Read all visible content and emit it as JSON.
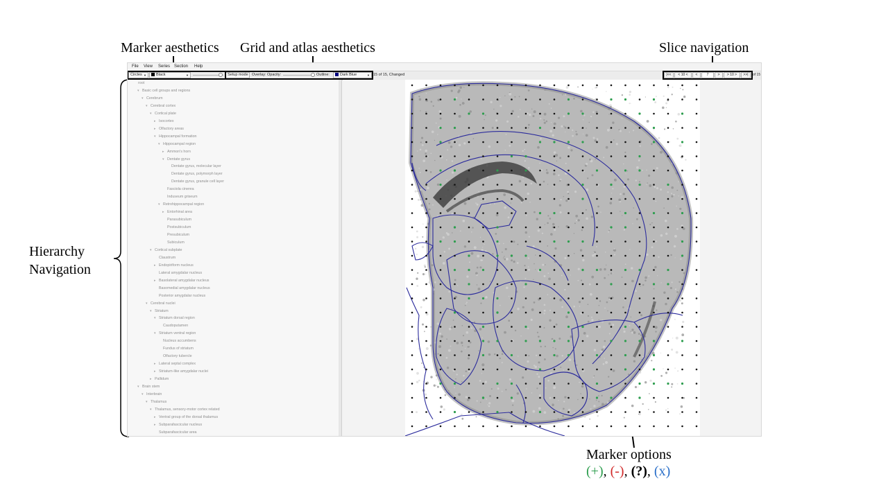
{
  "annotations": {
    "marker_aesthetics": "Marker aesthetics",
    "grid_atlas_aesthetics": "Grid and atlas aesthetics",
    "slice_navigation": "Slice navigation",
    "hierarchy_line1": "Hierarchy",
    "hierarchy_line2": "Navigation",
    "marker_options_title": "Marker options",
    "marker_options": {
      "plus": "(+)",
      "minus": "(-)",
      "question": "(?)",
      "x": "(x)",
      "sep": ", ",
      "colors": {
        "plus": "#2e9e4f",
        "minus": "#d12a2a",
        "question": "#000000",
        "x": "#2a6fc9"
      }
    }
  },
  "menu": [
    "File",
    "View",
    "Series",
    "Section",
    "Help"
  ],
  "toolbar": {
    "marker_shape": "Circles",
    "marker_color": "Black",
    "marker_color_swatch": "#000000",
    "setup_mode": "Setup mode",
    "overlay_label": "Overlay: Opacity:",
    "outline_label": "Outline:",
    "outline_color": "Dark Blue",
    "outline_swatch": "#000080",
    "series_status": "15 of 15, Changed"
  },
  "navigation": {
    "first": "|<<",
    "back10": "< 10 <",
    "back1": "<",
    "current": "7",
    "fwd1": ">",
    "fwd10": "> 10 >",
    "last": ">>|",
    "total": "of 15"
  },
  "tree": [
    {
      "label": "root",
      "arrow": ""
    },
    {
      "label": "Basic cell groups and regions",
      "arrow": "▾"
    },
    {
      "label": "Cerebrum",
      "arrow": "▾"
    },
    {
      "label": "Cerebral cortex",
      "arrow": "▾"
    },
    {
      "label": "Cortical plate",
      "arrow": "▾"
    },
    {
      "label": "Isocortex",
      "arrow": "▸"
    },
    {
      "label": "Olfactory areas",
      "arrow": "▸"
    },
    {
      "label": "Hippocampal formation",
      "arrow": "▾"
    },
    {
      "label": "Hippocampal region",
      "arrow": "▾"
    },
    {
      "label": "Ammon's horn",
      "arrow": "▸"
    },
    {
      "label": "Dentate gyrus",
      "arrow": "▾"
    },
    {
      "label": "Dentate gyrus, molecular layer",
      "arrow": ""
    },
    {
      "label": "Dentate gyrus, polymorph layer",
      "arrow": ""
    },
    {
      "label": "Dentate gyrus, granule cell layer",
      "arrow": ""
    },
    {
      "label": "Fasciola cinerea",
      "arrow": ""
    },
    {
      "label": "Induseum griseum",
      "arrow": ""
    },
    {
      "label": "Retrohippocampal region",
      "arrow": "▾"
    },
    {
      "label": "Entorhinal area",
      "arrow": "▸"
    },
    {
      "label": "Parasubiculum",
      "arrow": ""
    },
    {
      "label": "Postsubiculum",
      "arrow": ""
    },
    {
      "label": "Presubiculum",
      "arrow": ""
    },
    {
      "label": "Subiculum",
      "arrow": ""
    },
    {
      "label": "Cortical subplate",
      "arrow": "▾"
    },
    {
      "label": "Claustrum",
      "arrow": ""
    },
    {
      "label": "Endopiriform nucleus",
      "arrow": "▸"
    },
    {
      "label": "Lateral amygdalar nucleus",
      "arrow": ""
    },
    {
      "label": "Basolateral amygdalar nucleus",
      "arrow": "▸"
    },
    {
      "label": "Basomedial amygdalar nucleus",
      "arrow": ""
    },
    {
      "label": "Posterior amygdalar nucleus",
      "arrow": ""
    },
    {
      "label": "Cerebral nuclei",
      "arrow": "▾"
    },
    {
      "label": "Striatum",
      "arrow": "▾"
    },
    {
      "label": "Striatum dorsal region",
      "arrow": "▾"
    },
    {
      "label": "Caudoputamen",
      "arrow": ""
    },
    {
      "label": "Striatum ventral region",
      "arrow": "▾"
    },
    {
      "label": "Nucleus accumbens",
      "arrow": ""
    },
    {
      "label": "Fundus of striatum",
      "arrow": ""
    },
    {
      "label": "Olfactory tubercle",
      "arrow": ""
    },
    {
      "label": "Lateral septal complex",
      "arrow": "▸"
    },
    {
      "label": "Striatum-like amygdalar nuclei",
      "arrow": "▸"
    },
    {
      "label": "Pallidum",
      "arrow": "▸"
    },
    {
      "label": "Brain stem",
      "arrow": "▾"
    },
    {
      "label": "Interbrain",
      "arrow": "▾"
    },
    {
      "label": "Thalamus",
      "arrow": "▾"
    },
    {
      "label": "Thalamus, sensory-motor cortex related",
      "arrow": "▾"
    },
    {
      "label": "Ventral group of the dorsal thalamus",
      "arrow": "▸"
    },
    {
      "label": "Subparafascicular nucleus",
      "arrow": "▸"
    },
    {
      "label": "Subparafascicular area",
      "arrow": ""
    }
  ],
  "colors": {
    "atlas_outline": "#2b2b9c",
    "marker_green": "#2e9e4f",
    "grid_point": "#111111"
  }
}
